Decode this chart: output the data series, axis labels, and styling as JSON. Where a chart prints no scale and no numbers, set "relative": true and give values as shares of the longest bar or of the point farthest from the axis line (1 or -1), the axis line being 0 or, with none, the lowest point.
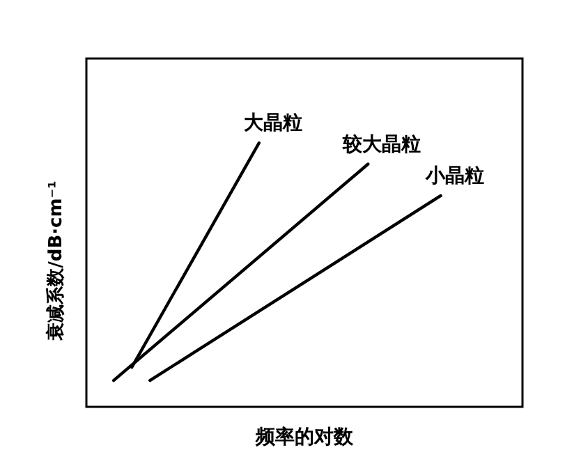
{
  "chart_data": {
    "type": "line",
    "relative": true,
    "xlabel": "频率的对数",
    "ylabel": "衰减系数/dB·cm⁻¹",
    "marker": "none",
    "line_style": "solid",
    "categories": [
      null,
      null,
      null,
      null,
      null,
      null,
      null,
      null,
      null,
      null,
      null,
      null,
      null,
      null,
      null,
      null,
      null,
      null,
      null,
      null,
      null,
      null,
      null,
      null
    ],
    "series": [
      {
        "name": "大晶粒",
        "color": "#000000",
        "values": [
          null,
          null,
          0.15,
          null,
          null,
          null,
          null,
          null,
          null,
          1,
          null,
          null,
          null,
          null,
          null,
          null,
          null,
          null,
          null,
          null,
          null,
          null,
          null,
          null
        ]
      },
      {
        "name": "较大晶粒",
        "color": "#000000",
        "values": [
          null,
          0.1,
          null,
          null,
          null,
          null,
          null,
          null,
          null,
          null,
          null,
          null,
          null,
          null,
          null,
          0.92,
          null,
          null,
          null,
          null,
          null,
          null,
          null,
          null
        ]
      },
      {
        "name": "小晶粒",
        "color": "#000000",
        "values": [
          null,
          null,
          null,
          0.1,
          null,
          null,
          null,
          null,
          null,
          null,
          null,
          null,
          null,
          null,
          null,
          null,
          null,
          null,
          null,
          0.8,
          null,
          null,
          null,
          null
        ]
      }
    ]
  }
}
